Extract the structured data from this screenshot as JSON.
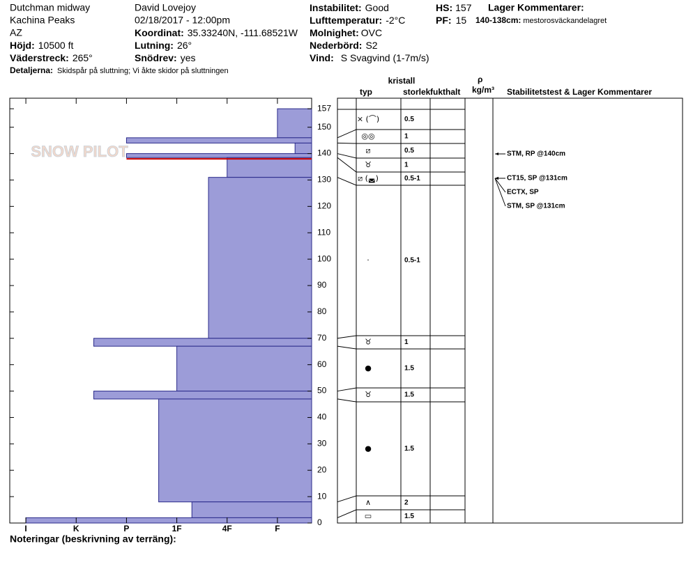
{
  "header": {
    "location": "Dutchman midway",
    "area": "Kachina Peaks",
    "state": "AZ",
    "elevation_label": "Höjd:",
    "elevation": "10500 ft",
    "aspect_label": "Väderstreck:",
    "aspect": "265°",
    "details_label": "Detaljerna:",
    "details": "Skidspår på sluttning;  Vi åkte skidor på sluttningen",
    "observer": "David Lovejoy",
    "datetime": "02/18/2017 - 12:00pm",
    "coord_label": "Koordinat:",
    "coord": "35.33240N, -111.68521W",
    "slope_label": "Lutning:",
    "slope": "26°",
    "drift_label": "Snödrev:",
    "drift": "yes",
    "stability_label": "Instabilitet:",
    "stability": "Good",
    "air_label": "Lufttemperatur:",
    "air": "-2°C",
    "sky_label": "Molnighet:",
    "sky": "OVC",
    "precip_label": "Nederbörd:",
    "precip": "S2",
    "wind_label": "Vind:",
    "wind": "S Svagvind (1-7m/s)",
    "hs_label": "HS:",
    "hs": 157,
    "pf_label": "PF:",
    "pf": 15,
    "layer_comments_title": "Lager Kommentarer:",
    "layer_comment_range": "140-138cm:",
    "layer_comment": "mestorosväckandelagret"
  },
  "watermark": "SNOW PILOT",
  "chart_data": {
    "type": "hardness-profile",
    "layers": [
      {
        "top": 157,
        "bottom": 146,
        "hardness": 1
      },
      {
        "top": 146,
        "bottom": 144,
        "hardness": 4
      },
      {
        "top": 144,
        "bottom": 140,
        "hardness": 0.65
      },
      {
        "top": 140,
        "bottom": 138.5,
        "hardness": 4
      },
      {
        "top": 138.5,
        "bottom": 131,
        "hardness": 2
      },
      {
        "top": 131,
        "bottom": 70,
        "hardness": 2.37
      },
      {
        "top": 70,
        "bottom": 67,
        "hardness": 4.65
      },
      {
        "top": 67,
        "bottom": 50,
        "hardness": 3
      },
      {
        "top": 50,
        "bottom": 47,
        "hardness": 4.65
      },
      {
        "top": 47,
        "bottom": 8,
        "hardness": 3.36
      },
      {
        "top": 8,
        "bottom": 2,
        "hardness": 2.7
      },
      {
        "top": 2,
        "bottom": 0,
        "hardness": 6
      }
    ],
    "color": "#9c9cd8",
    "edge_color": "#2a2a8a",
    "critical_depth": 138,
    "critical_color": "#cc0000",
    "ylim": [
      0,
      161
    ],
    "yticks": [
      0,
      10,
      20,
      30,
      40,
      50,
      60,
      70,
      80,
      90,
      100,
      110,
      120,
      130,
      140,
      150,
      157
    ],
    "xlim": [
      6.32,
      0.32
    ],
    "xticks": [
      {
        "value": 6,
        "label": "I"
      },
      {
        "value": 5,
        "label": "K"
      },
      {
        "value": 4,
        "label": "P"
      },
      {
        "value": 3,
        "label": "1F"
      },
      {
        "value": 2,
        "label": "4F"
      },
      {
        "value": 1,
        "label": "F"
      }
    ],
    "footer": "Noteringar (beskrivning av terräng):"
  },
  "table": {
    "headers": {
      "crystal": "kristall",
      "type": "typ",
      "size": "storlek",
      "moisture": "fukthalt",
      "rho": "ρ",
      "density": "kg/m³",
      "comments": "Stabilitetstest & Lager Kommentarer"
    },
    "rows": [
      {
        "symbol": "⨯ (⌒)",
        "size": "0.5"
      },
      {
        "symbol": "◎◎",
        "size": "1"
      },
      {
        "symbol": "⧄",
        "size": "0.5"
      },
      {
        "symbol": "♉",
        "size": "1"
      },
      {
        "symbol": "⧄ (◛)",
        "size": "0.5-1"
      },
      {
        "symbol": "·",
        "size": "0.5-1"
      },
      {
        "symbol": "♉",
        "size": "1"
      },
      {
        "symbol": "●",
        "size": "1.5"
      },
      {
        "symbol": "♉",
        "size": "1.5"
      },
      {
        "symbol": "●",
        "size": "1.5"
      },
      {
        "symbol": "∧",
        "size": "2"
      },
      {
        "symbol": "▭",
        "size": "1.5"
      }
    ],
    "tests": [
      "STM, RP @140cm",
      "CT15, SP @131cm",
      "ECTX, SP",
      "STM, SP @131cm"
    ]
  }
}
